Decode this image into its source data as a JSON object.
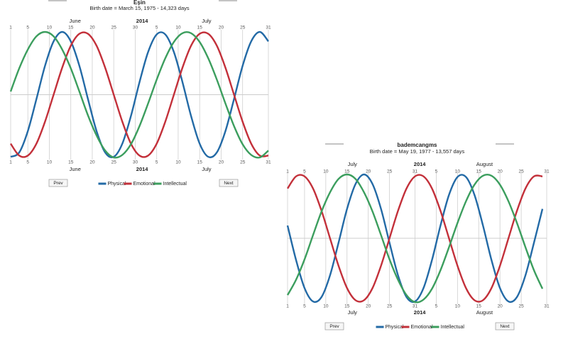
{
  "chart_data": [
    {
      "type": "line",
      "title": "Eşin",
      "subtitle": "Birth date = March 15, 1975 - 14,323 days",
      "x_group_labels": [
        "June",
        "2014",
        "July"
      ],
      "x": [
        0,
        2,
        4,
        6,
        8,
        10,
        12,
        14,
        16,
        18,
        20,
        22,
        24,
        26,
        28,
        30,
        32,
        34,
        36,
        38,
        40,
        42,
        44,
        46,
        48,
        50,
        52,
        54,
        56,
        58,
        60
      ],
      "xlim": [
        0,
        60
      ],
      "xticks": [
        {
          "value": 0,
          "label": "1"
        },
        {
          "value": 4,
          "label": "5"
        },
        {
          "value": 9,
          "label": "10"
        },
        {
          "value": 14,
          "label": "15"
        },
        {
          "value": 19,
          "label": "20"
        },
        {
          "value": 24,
          "label": "25"
        },
        {
          "value": 29,
          "label": "30"
        },
        {
          "value": 34,
          "label": "5"
        },
        {
          "value": 39,
          "label": "10"
        },
        {
          "value": 44,
          "label": "15"
        },
        {
          "value": 49,
          "label": "20"
        },
        {
          "value": 54,
          "label": "25"
        },
        {
          "value": 60,
          "label": "31"
        }
      ],
      "ylim": [
        -100,
        100
      ],
      "grid": true,
      "series": [
        {
          "name": "Physical",
          "color": "#236aa6",
          "values": [
            -99,
            -92,
            -58,
            -7,
            46,
            85,
            100,
            85,
            46,
            -7,
            -58,
            -92,
            -99,
            -78,
            -34,
            20,
            68,
            96,
            96,
            68,
            20,
            -34,
            -78,
            -99,
            -92,
            -58,
            -7,
            46,
            85,
            100,
            85
          ]
        },
        {
          "name": "Emotional",
          "color": "#c3303a",
          "values": [
            -78,
            -97,
            -97,
            -78,
            -43,
            0,
            43,
            78,
            97,
            97,
            78,
            43,
            0,
            -43,
            -78,
            -97,
            -97,
            -78,
            -43,
            0,
            43,
            78,
            97,
            97,
            78,
            43,
            0,
            -43,
            -78,
            -97,
            -97
          ]
        },
        {
          "name": "Intellectual",
          "color": "#3c9e5e",
          "values": [
            5,
            42,
            72,
            93,
            100,
            93,
            72,
            42,
            5,
            -33,
            -65,
            -89,
            -100,
            -96,
            -79,
            -50,
            -14,
            24,
            58,
            84,
            98,
            98,
            84,
            58,
            24,
            -14,
            -50,
            -79,
            -96,
            -100,
            -89
          ]
        }
      ],
      "buttons": [
        "Prev",
        "Next"
      ]
    },
    {
      "type": "line",
      "title": "bademcangms",
      "subtitle": "Birth date = May 19, 1977 - 13,557 days",
      "x_group_labels": [
        "July",
        "2014",
        "August"
      ],
      "x": [
        0,
        2,
        4,
        6,
        8,
        10,
        12,
        14,
        16,
        18,
        20,
        22,
        24,
        26,
        28,
        30,
        32,
        34,
        36,
        38,
        40,
        42,
        44,
        46,
        48,
        50,
        52,
        54,
        56,
        58,
        60
      ],
      "xlim": [
        0,
        61
      ],
      "xticks": [
        {
          "value": 0,
          "label": "1"
        },
        {
          "value": 4,
          "label": "5"
        },
        {
          "value": 9,
          "label": "10"
        },
        {
          "value": 14,
          "label": "15"
        },
        {
          "value": 19,
          "label": "20"
        },
        {
          "value": 24,
          "label": "25"
        },
        {
          "value": 30,
          "label": "31"
        },
        {
          "value": 35,
          "label": "5"
        },
        {
          "value": 40,
          "label": "10"
        },
        {
          "value": 45,
          "label": "15"
        },
        {
          "value": 50,
          "label": "20"
        },
        {
          "value": 55,
          "label": "25"
        },
        {
          "value": 61,
          "label": "31"
        }
      ],
      "ylim": [
        -100,
        100
      ],
      "grid": true,
      "series": [
        {
          "name": "Physical",
          "color": "#236aa6",
          "values": [
            20,
            -34,
            -78,
            -99,
            -92,
            -58,
            -7,
            46,
            85,
            100,
            85,
            46,
            -7,
            -58,
            -92,
            -99,
            -78,
            -34,
            20,
            68,
            96,
            96,
            68,
            20,
            -34,
            -78,
            -99,
            -92,
            -58,
            -7,
            46
          ]
        },
        {
          "name": "Emotional",
          "color": "#c3303a",
          "values": [
            78,
            97,
            97,
            78,
            43,
            0,
            -43,
            -78,
            -97,
            -97,
            -78,
            -43,
            0,
            43,
            78,
            97,
            97,
            78,
            43,
            0,
            -43,
            -78,
            -97,
            -97,
            -78,
            -43,
            0,
            43,
            78,
            97,
            97
          ]
        },
        {
          "name": "Intellectual",
          "color": "#3c9e5e",
          "values": [
            -89,
            -65,
            -33,
            5,
            42,
            72,
            93,
            100,
            93,
            72,
            42,
            5,
            -33,
            -65,
            -89,
            -100,
            -96,
            -79,
            -50,
            -14,
            24,
            58,
            84,
            98,
            98,
            84,
            58,
            24,
            -14,
            -50,
            -79
          ]
        }
      ],
      "buttons": [
        "Prev",
        "Next"
      ]
    }
  ]
}
